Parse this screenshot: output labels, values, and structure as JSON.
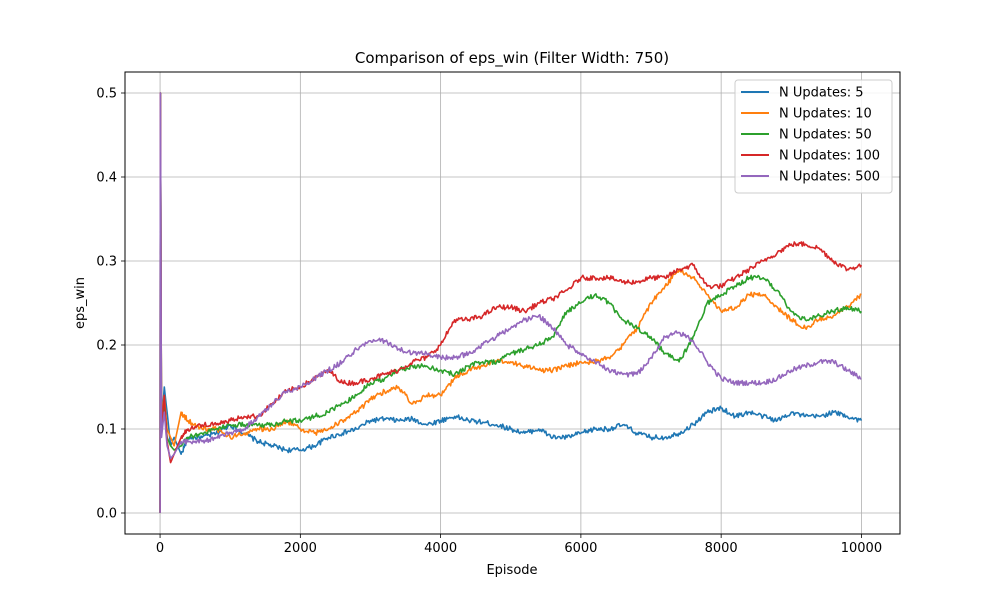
{
  "chart_data": {
    "type": "line",
    "title": "Comparison of eps_win (Filter Width: 750)",
    "xlabel": "Episode",
    "ylabel": "eps_win",
    "xlim": [
      -500,
      10550
    ],
    "ylim": [
      -0.025,
      0.525
    ],
    "xticks": [
      0,
      2000,
      4000,
      6000,
      8000,
      10000
    ],
    "xtick_labels": [
      "0",
      "2000",
      "4000",
      "6000",
      "8000",
      "10000"
    ],
    "yticks": [
      0.0,
      0.1,
      0.2,
      0.3,
      0.4,
      0.5
    ],
    "ytick_labels": [
      "0.0",
      "0.1",
      "0.2",
      "0.3",
      "0.4",
      "0.5"
    ],
    "grid": true,
    "legend_position": "top-right",
    "series": [
      {
        "name": "N Updates: 5",
        "color": "#1f77b4",
        "points": [
          [
            0,
            0
          ],
          [
            5,
            0.5
          ],
          [
            20,
            0.1
          ],
          [
            60,
            0.15
          ],
          [
            100,
            0.12
          ],
          [
            150,
            0.08
          ],
          [
            200,
            0.09
          ],
          [
            300,
            0.07
          ],
          [
            400,
            0.09
          ],
          [
            600,
            0.09
          ],
          [
            800,
            0.095
          ],
          [
            1000,
            0.105
          ],
          [
            1200,
            0.095
          ],
          [
            1400,
            0.085
          ],
          [
            1600,
            0.08
          ],
          [
            1800,
            0.075
          ],
          [
            2000,
            0.075
          ],
          [
            2200,
            0.08
          ],
          [
            2400,
            0.09
          ],
          [
            2600,
            0.095
          ],
          [
            2800,
            0.1
          ],
          [
            3000,
            0.11
          ],
          [
            3200,
            0.112
          ],
          [
            3400,
            0.11
          ],
          [
            3600,
            0.112
          ],
          [
            3800,
            0.105
          ],
          [
            4000,
            0.11
          ],
          [
            4200,
            0.115
          ],
          [
            4400,
            0.11
          ],
          [
            4600,
            0.108
          ],
          [
            4800,
            0.105
          ],
          [
            5000,
            0.1
          ],
          [
            5200,
            0.095
          ],
          [
            5400,
            0.1
          ],
          [
            5600,
            0.09
          ],
          [
            5800,
            0.09
          ],
          [
            6000,
            0.095
          ],
          [
            6200,
            0.1
          ],
          [
            6400,
            0.1
          ],
          [
            6600,
            0.105
          ],
          [
            6800,
            0.095
          ],
          [
            7000,
            0.09
          ],
          [
            7200,
            0.09
          ],
          [
            7400,
            0.095
          ],
          [
            7600,
            0.105
          ],
          [
            7800,
            0.12
          ],
          [
            8000,
            0.125
          ],
          [
            8200,
            0.115
          ],
          [
            8400,
            0.12
          ],
          [
            8600,
            0.115
          ],
          [
            8800,
            0.11
          ],
          [
            9000,
            0.12
          ],
          [
            9200,
            0.115
          ],
          [
            9400,
            0.115
          ],
          [
            9600,
            0.12
          ],
          [
            9800,
            0.115
          ],
          [
            10000,
            0.11
          ]
        ]
      },
      {
        "name": "N Updates: 10",
        "color": "#ff7f0e",
        "points": [
          [
            0,
            0
          ],
          [
            5,
            0.5
          ],
          [
            20,
            0.11
          ],
          [
            60,
            0.14
          ],
          [
            100,
            0.1
          ],
          [
            150,
            0.09
          ],
          [
            200,
            0.08
          ],
          [
            300,
            0.12
          ],
          [
            400,
            0.11
          ],
          [
            600,
            0.1
          ],
          [
            800,
            0.1
          ],
          [
            1000,
            0.09
          ],
          [
            1200,
            0.095
          ],
          [
            1400,
            0.1
          ],
          [
            1600,
            0.1
          ],
          [
            1800,
            0.11
          ],
          [
            2000,
            0.1
          ],
          [
            2200,
            0.095
          ],
          [
            2400,
            0.1
          ],
          [
            2600,
            0.11
          ],
          [
            2800,
            0.12
          ],
          [
            3000,
            0.135
          ],
          [
            3200,
            0.145
          ],
          [
            3400,
            0.15
          ],
          [
            3600,
            0.13
          ],
          [
            3800,
            0.14
          ],
          [
            4000,
            0.14
          ],
          [
            4200,
            0.16
          ],
          [
            4400,
            0.17
          ],
          [
            4600,
            0.175
          ],
          [
            4800,
            0.18
          ],
          [
            5000,
            0.18
          ],
          [
            5200,
            0.175
          ],
          [
            5400,
            0.17
          ],
          [
            5600,
            0.17
          ],
          [
            5800,
            0.175
          ],
          [
            6000,
            0.18
          ],
          [
            6200,
            0.18
          ],
          [
            6400,
            0.185
          ],
          [
            6600,
            0.2
          ],
          [
            6800,
            0.22
          ],
          [
            7000,
            0.25
          ],
          [
            7200,
            0.27
          ],
          [
            7400,
            0.29
          ],
          [
            7600,
            0.28
          ],
          [
            7800,
            0.26
          ],
          [
            8000,
            0.24
          ],
          [
            8200,
            0.245
          ],
          [
            8400,
            0.26
          ],
          [
            8600,
            0.26
          ],
          [
            8800,
            0.245
          ],
          [
            9000,
            0.23
          ],
          [
            9200,
            0.22
          ],
          [
            9400,
            0.23
          ],
          [
            9600,
            0.235
          ],
          [
            9800,
            0.245
          ],
          [
            10000,
            0.26
          ]
        ]
      },
      {
        "name": "N Updates: 50",
        "color": "#2ca02c",
        "points": [
          [
            0,
            0
          ],
          [
            5,
            0.5
          ],
          [
            20,
            0.1
          ],
          [
            60,
            0.13
          ],
          [
            100,
            0.09
          ],
          [
            150,
            0.08
          ],
          [
            200,
            0.075
          ],
          [
            300,
            0.08
          ],
          [
            400,
            0.09
          ],
          [
            600,
            0.095
          ],
          [
            800,
            0.1
          ],
          [
            1000,
            0.105
          ],
          [
            1200,
            0.105
          ],
          [
            1400,
            0.105
          ],
          [
            1600,
            0.105
          ],
          [
            1800,
            0.11
          ],
          [
            2000,
            0.11
          ],
          [
            2200,
            0.115
          ],
          [
            2400,
            0.12
          ],
          [
            2600,
            0.13
          ],
          [
            2800,
            0.14
          ],
          [
            3000,
            0.155
          ],
          [
            3200,
            0.16
          ],
          [
            3400,
            0.17
          ],
          [
            3600,
            0.175
          ],
          [
            3800,
            0.175
          ],
          [
            4000,
            0.17
          ],
          [
            4200,
            0.165
          ],
          [
            4400,
            0.175
          ],
          [
            4600,
            0.18
          ],
          [
            4800,
            0.18
          ],
          [
            5000,
            0.19
          ],
          [
            5200,
            0.195
          ],
          [
            5400,
            0.2
          ],
          [
            5600,
            0.21
          ],
          [
            5800,
            0.24
          ],
          [
            6000,
            0.25
          ],
          [
            6200,
            0.26
          ],
          [
            6400,
            0.25
          ],
          [
            6600,
            0.23
          ],
          [
            6800,
            0.22
          ],
          [
            7000,
            0.21
          ],
          [
            7200,
            0.19
          ],
          [
            7400,
            0.18
          ],
          [
            7600,
            0.21
          ],
          [
            7800,
            0.25
          ],
          [
            8000,
            0.26
          ],
          [
            8200,
            0.27
          ],
          [
            8400,
            0.28
          ],
          [
            8600,
            0.28
          ],
          [
            8800,
            0.265
          ],
          [
            9000,
            0.24
          ],
          [
            9200,
            0.23
          ],
          [
            9400,
            0.235
          ],
          [
            9600,
            0.24
          ],
          [
            9800,
            0.245
          ],
          [
            10000,
            0.24
          ]
        ]
      },
      {
        "name": "N Updates: 100",
        "color": "#d62728",
        "points": [
          [
            0,
            0
          ],
          [
            5,
            0.5
          ],
          [
            20,
            0.1
          ],
          [
            60,
            0.14
          ],
          [
            100,
            0.085
          ],
          [
            150,
            0.06
          ],
          [
            200,
            0.07
          ],
          [
            300,
            0.09
          ],
          [
            400,
            0.1
          ],
          [
            600,
            0.105
          ],
          [
            800,
            0.105
          ],
          [
            1000,
            0.11
          ],
          [
            1200,
            0.115
          ],
          [
            1400,
            0.115
          ],
          [
            1600,
            0.13
          ],
          [
            1800,
            0.145
          ],
          [
            2000,
            0.15
          ],
          [
            2200,
            0.16
          ],
          [
            2400,
            0.17
          ],
          [
            2600,
            0.155
          ],
          [
            2800,
            0.155
          ],
          [
            3000,
            0.16
          ],
          [
            3200,
            0.165
          ],
          [
            3400,
            0.17
          ],
          [
            3600,
            0.18
          ],
          [
            3800,
            0.185
          ],
          [
            4000,
            0.2
          ],
          [
            4200,
            0.23
          ],
          [
            4400,
            0.23
          ],
          [
            4600,
            0.235
          ],
          [
            4800,
            0.245
          ],
          [
            5000,
            0.245
          ],
          [
            5200,
            0.24
          ],
          [
            5400,
            0.25
          ],
          [
            5600,
            0.255
          ],
          [
            5800,
            0.265
          ],
          [
            6000,
            0.28
          ],
          [
            6200,
            0.28
          ],
          [
            6400,
            0.28
          ],
          [
            6600,
            0.275
          ],
          [
            6800,
            0.275
          ],
          [
            7000,
            0.28
          ],
          [
            7200,
            0.28
          ],
          [
            7400,
            0.29
          ],
          [
            7600,
            0.295
          ],
          [
            7800,
            0.27
          ],
          [
            8000,
            0.27
          ],
          [
            8200,
            0.28
          ],
          [
            8400,
            0.29
          ],
          [
            8600,
            0.3
          ],
          [
            8800,
            0.31
          ],
          [
            9000,
            0.32
          ],
          [
            9200,
            0.32
          ],
          [
            9400,
            0.315
          ],
          [
            9600,
            0.3
          ],
          [
            9800,
            0.29
          ],
          [
            10000,
            0.295
          ]
        ]
      },
      {
        "name": "N Updates: 500",
        "color": "#9467bd",
        "points": [
          [
            0,
            0
          ],
          [
            5,
            0.5
          ],
          [
            20,
            0.09
          ],
          [
            60,
            0.12
          ],
          [
            100,
            0.08
          ],
          [
            150,
            0.065
          ],
          [
            200,
            0.07
          ],
          [
            300,
            0.085
          ],
          [
            400,
            0.085
          ],
          [
            600,
            0.085
          ],
          [
            800,
            0.09
          ],
          [
            1000,
            0.095
          ],
          [
            1200,
            0.1
          ],
          [
            1400,
            0.115
          ],
          [
            1600,
            0.13
          ],
          [
            1800,
            0.145
          ],
          [
            2000,
            0.15
          ],
          [
            2200,
            0.16
          ],
          [
            2400,
            0.17
          ],
          [
            2600,
            0.18
          ],
          [
            2800,
            0.195
          ],
          [
            3000,
            0.205
          ],
          [
            3200,
            0.205
          ],
          [
            3400,
            0.195
          ],
          [
            3600,
            0.19
          ],
          [
            3800,
            0.19
          ],
          [
            4000,
            0.185
          ],
          [
            4200,
            0.185
          ],
          [
            4400,
            0.19
          ],
          [
            4600,
            0.2
          ],
          [
            4800,
            0.21
          ],
          [
            5000,
            0.22
          ],
          [
            5200,
            0.23
          ],
          [
            5400,
            0.235
          ],
          [
            5600,
            0.22
          ],
          [
            5800,
            0.2
          ],
          [
            6000,
            0.19
          ],
          [
            6200,
            0.18
          ],
          [
            6400,
            0.17
          ],
          [
            6600,
            0.165
          ],
          [
            6800,
            0.165
          ],
          [
            7000,
            0.185
          ],
          [
            7200,
            0.21
          ],
          [
            7400,
            0.215
          ],
          [
            7600,
            0.205
          ],
          [
            7800,
            0.18
          ],
          [
            8000,
            0.16
          ],
          [
            8200,
            0.155
          ],
          [
            8400,
            0.155
          ],
          [
            8600,
            0.155
          ],
          [
            8800,
            0.16
          ],
          [
            9000,
            0.17
          ],
          [
            9200,
            0.175
          ],
          [
            9400,
            0.18
          ],
          [
            9600,
            0.18
          ],
          [
            9800,
            0.17
          ],
          [
            10000,
            0.16
          ]
        ]
      }
    ]
  }
}
